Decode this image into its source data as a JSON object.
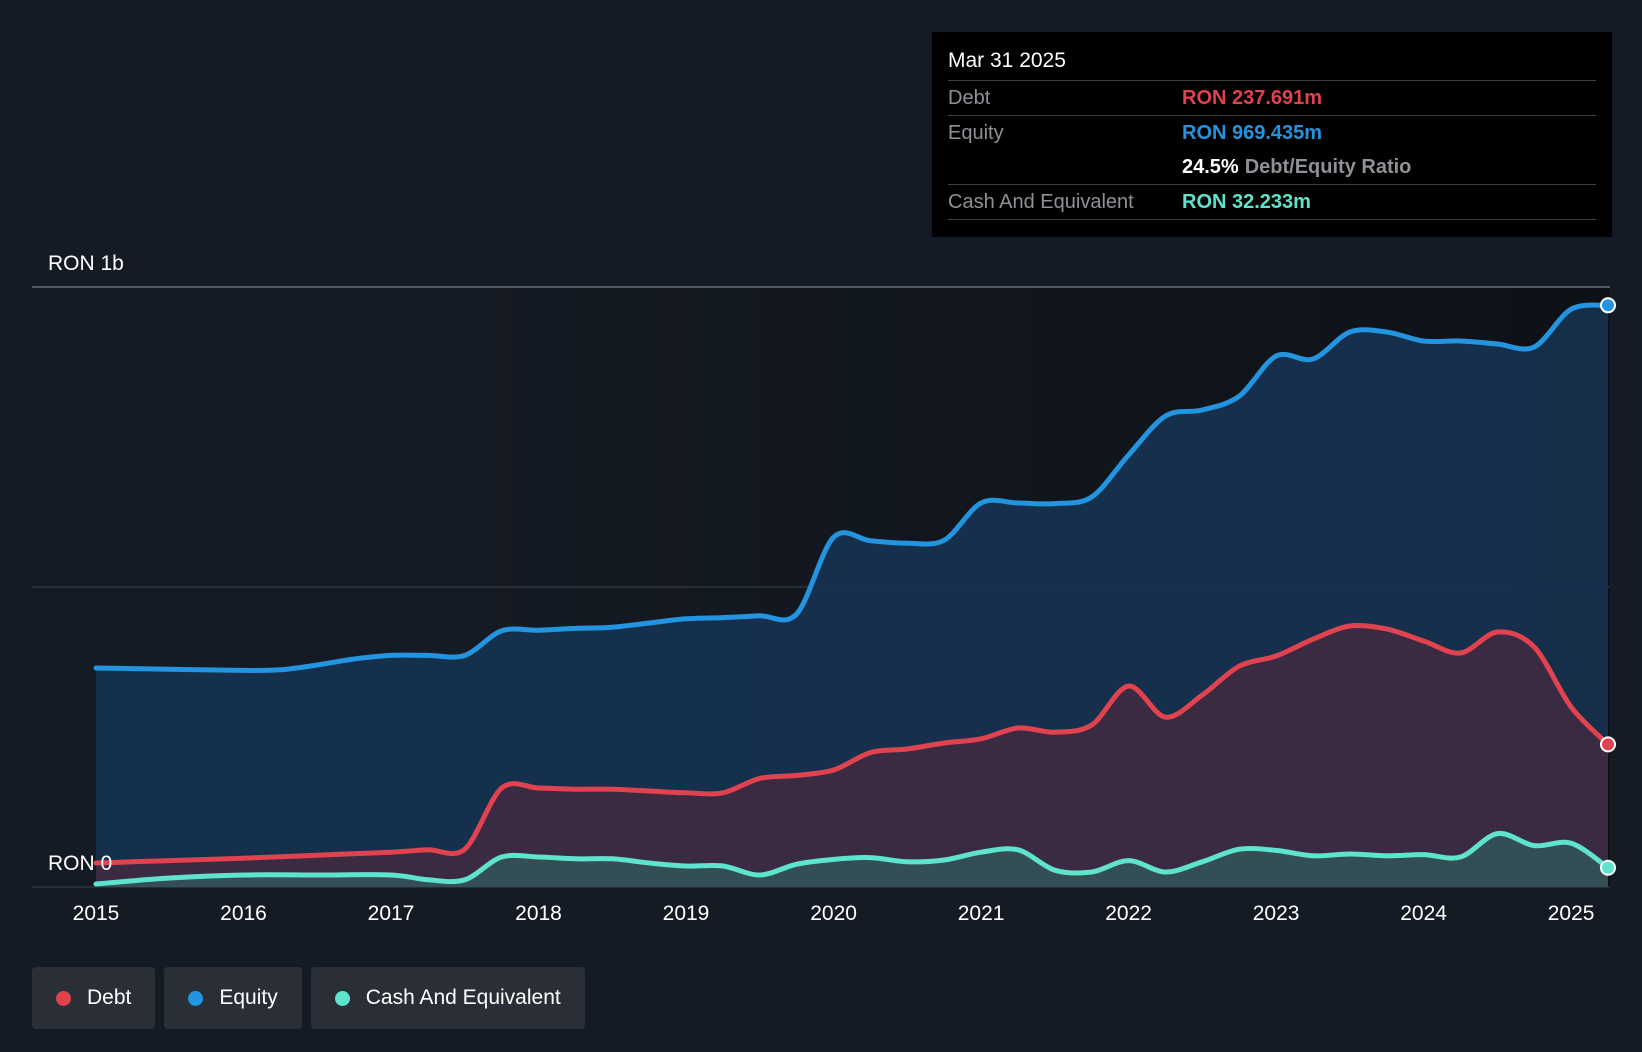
{
  "chart_data": {
    "type": "area",
    "y_top_label": "RON 1b",
    "y_bottom_label": "RON 0",
    "y_unit": "RON m",
    "ylim": [
      0,
      1000
    ],
    "x_tick_labels": [
      "2015",
      "2016",
      "2017",
      "2018",
      "2019",
      "2020",
      "2021",
      "2022",
      "2023",
      "2024",
      "2025"
    ],
    "xlim": [
      2015.0,
      2025.25
    ],
    "series": [
      {
        "name": "Equity",
        "color": "#2394df",
        "points": [
          [
            2015.0,
            365
          ],
          [
            2015.5,
            363
          ],
          [
            2016.0,
            361
          ],
          [
            2016.25,
            362
          ],
          [
            2016.5,
            370
          ],
          [
            2016.75,
            380
          ],
          [
            2017.0,
            386
          ],
          [
            2017.25,
            386
          ],
          [
            2017.5,
            386
          ],
          [
            2017.75,
            427
          ],
          [
            2018.0,
            428
          ],
          [
            2018.25,
            431
          ],
          [
            2018.5,
            433
          ],
          [
            2018.75,
            440
          ],
          [
            2019.0,
            447
          ],
          [
            2019.25,
            449
          ],
          [
            2019.5,
            452
          ],
          [
            2019.75,
            455
          ],
          [
            2020.0,
            583
          ],
          [
            2020.25,
            577
          ],
          [
            2020.5,
            573
          ],
          [
            2020.75,
            578
          ],
          [
            2021.0,
            640
          ],
          [
            2021.25,
            640
          ],
          [
            2021.5,
            639
          ],
          [
            2021.75,
            650
          ],
          [
            2022.0,
            720
          ],
          [
            2022.25,
            785
          ],
          [
            2022.5,
            795
          ],
          [
            2022.75,
            818
          ],
          [
            2023.0,
            885
          ],
          [
            2023.25,
            880
          ],
          [
            2023.5,
            925
          ],
          [
            2023.75,
            925
          ],
          [
            2024.0,
            910
          ],
          [
            2024.25,
            910
          ],
          [
            2024.5,
            905
          ],
          [
            2024.75,
            900
          ],
          [
            2025.0,
            963
          ],
          [
            2025.25,
            969.435
          ]
        ]
      },
      {
        "name": "Debt",
        "color": "#e0434f",
        "points": [
          [
            2015.0,
            40
          ],
          [
            2015.5,
            44
          ],
          [
            2016.0,
            48
          ],
          [
            2016.5,
            53
          ],
          [
            2017.0,
            58
          ],
          [
            2017.25,
            62
          ],
          [
            2017.5,
            63
          ],
          [
            2017.75,
            165
          ],
          [
            2018.0,
            165
          ],
          [
            2018.25,
            163
          ],
          [
            2018.5,
            163
          ],
          [
            2018.75,
            160
          ],
          [
            2019.0,
            157
          ],
          [
            2019.25,
            157
          ],
          [
            2019.5,
            181
          ],
          [
            2019.75,
            186
          ],
          [
            2020.0,
            195
          ],
          [
            2020.25,
            224
          ],
          [
            2020.5,
            230
          ],
          [
            2020.75,
            240
          ],
          [
            2021.0,
            247
          ],
          [
            2021.25,
            265
          ],
          [
            2021.5,
            258
          ],
          [
            2021.75,
            270
          ],
          [
            2022.0,
            335
          ],
          [
            2022.25,
            283
          ],
          [
            2022.5,
            320
          ],
          [
            2022.75,
            368
          ],
          [
            2023.0,
            385
          ],
          [
            2023.25,
            413
          ],
          [
            2023.5,
            435
          ],
          [
            2023.75,
            430
          ],
          [
            2024.0,
            410
          ],
          [
            2024.25,
            390
          ],
          [
            2024.5,
            425
          ],
          [
            2024.75,
            400
          ],
          [
            2025.0,
            300
          ],
          [
            2025.25,
            237.691
          ]
        ]
      },
      {
        "name": "Cash And Equivalent",
        "color": "#5ee3cc",
        "points": [
          [
            2015.0,
            5
          ],
          [
            2015.5,
            15
          ],
          [
            2016.0,
            20
          ],
          [
            2016.5,
            20
          ],
          [
            2017.0,
            20
          ],
          [
            2017.25,
            12
          ],
          [
            2017.5,
            12
          ],
          [
            2017.75,
            50
          ],
          [
            2018.0,
            50
          ],
          [
            2018.25,
            47
          ],
          [
            2018.5,
            47
          ],
          [
            2018.75,
            40
          ],
          [
            2019.0,
            35
          ],
          [
            2019.25,
            35
          ],
          [
            2019.5,
            20
          ],
          [
            2019.75,
            38
          ],
          [
            2020.0,
            46
          ],
          [
            2020.25,
            49
          ],
          [
            2020.5,
            42
          ],
          [
            2020.75,
            45
          ],
          [
            2021.0,
            58
          ],
          [
            2021.25,
            62
          ],
          [
            2021.5,
            28
          ],
          [
            2021.75,
            25
          ],
          [
            2022.0,
            44
          ],
          [
            2022.25,
            25
          ],
          [
            2022.5,
            42
          ],
          [
            2022.75,
            63
          ],
          [
            2023.0,
            61
          ],
          [
            2023.25,
            52
          ],
          [
            2023.5,
            55
          ],
          [
            2023.75,
            52
          ],
          [
            2024.0,
            54
          ],
          [
            2024.25,
            50
          ],
          [
            2024.5,
            89
          ],
          [
            2024.75,
            69
          ],
          [
            2025.0,
            73
          ],
          [
            2025.25,
            32.233
          ]
        ]
      }
    ],
    "legend_position": "bottom-left"
  },
  "tooltip": {
    "date": "Mar 31 2025",
    "debt_label": "Debt",
    "debt_value": "RON 237.691m",
    "equity_label": "Equity",
    "equity_value": "RON 969.435m",
    "ratio_value": "24.5%",
    "ratio_label": "Debt/Equity Ratio",
    "cash_label": "Cash And Equivalent",
    "cash_value": "RON 32.233m"
  },
  "legend": {
    "debt": "Debt",
    "equity": "Equity",
    "cash": "Cash And Equivalent"
  },
  "colors": {
    "debt": "#e0434f",
    "equity": "#2394df",
    "cash": "#5ee3cc",
    "background": "#151b24"
  }
}
